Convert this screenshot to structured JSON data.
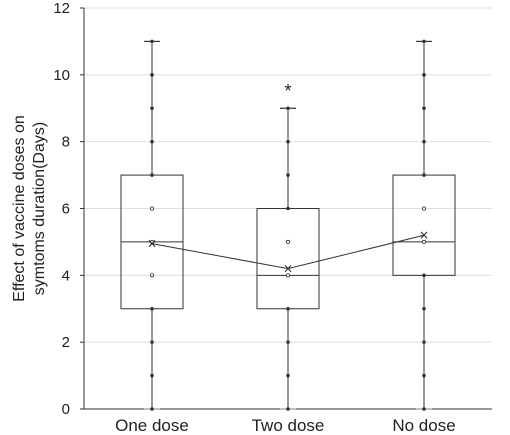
{
  "chart_data": {
    "type": "box",
    "ylabel_lines": [
      "Effect of vaccine doses on",
      "symtoms duration(Days)"
    ],
    "ylim": [
      0,
      12
    ],
    "yticks": [
      0,
      2,
      4,
      6,
      8,
      10,
      12
    ],
    "grid": true,
    "categories": [
      "One dose",
      "Two dose",
      "No dose"
    ],
    "boxes": [
      {
        "category": "One dose",
        "min": 0,
        "q1": 3,
        "median": 5,
        "q3": 7,
        "max": 11,
        "mean": 4.95,
        "points": [
          0,
          1,
          2,
          3,
          4,
          5,
          6,
          7,
          8,
          9,
          10,
          11
        ],
        "outliers": []
      },
      {
        "category": "Two dose",
        "min": 0,
        "q1": 3,
        "median": 4,
        "q3": 6,
        "max": 9,
        "mean": 4.2,
        "points": [
          0,
          1,
          2,
          3,
          4,
          5,
          6,
          7,
          8,
          9
        ],
        "outliers": [
          9.6
        ]
      },
      {
        "category": "No dose",
        "min": 0,
        "q1": 4,
        "median": 5,
        "q3": 7,
        "max": 11,
        "mean": 5.2,
        "points": [
          0,
          1,
          2,
          3,
          4,
          5,
          6,
          7,
          8,
          9,
          10,
          11
        ],
        "outliers": []
      }
    ],
    "outlier_marker": "*",
    "mean_marker": "×",
    "mean_line": true,
    "colors": {
      "box": "#333333",
      "grid": "#dddddd",
      "text": "#222222"
    }
  }
}
